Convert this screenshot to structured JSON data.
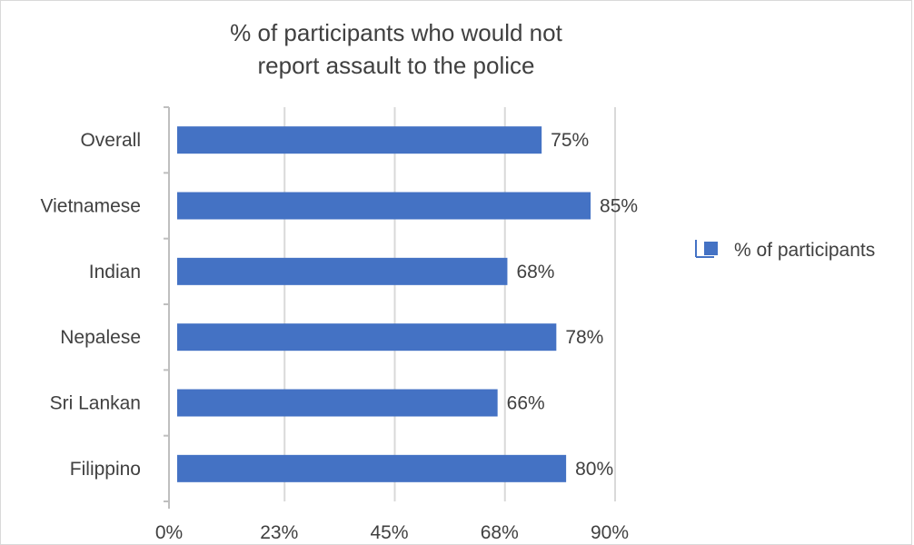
{
  "chart_data": {
    "type": "bar",
    "orientation": "horizontal",
    "title_lines": [
      "% of participants who would not",
      "report assault to the police"
    ],
    "categories": [
      "Overall",
      "Vietnamese",
      "Indian",
      "Nepalese",
      "Sri Lankan",
      "Filippino"
    ],
    "series": [
      {
        "name": "% of participants",
        "values": [
          75,
          85,
          68,
          78,
          66,
          80
        ],
        "labels": [
          "75%",
          "85%",
          "68%",
          "78%",
          "66%",
          "80%"
        ],
        "color": "#4472c4"
      }
    ],
    "xlim": [
      0,
      90
    ],
    "x_ticks": [
      0,
      22.5,
      45,
      67.5,
      90
    ],
    "x_tick_labels": [
      "0%",
      "23%",
      "45%",
      "68%",
      "90%"
    ],
    "grid": true,
    "legend_position": "right"
  }
}
